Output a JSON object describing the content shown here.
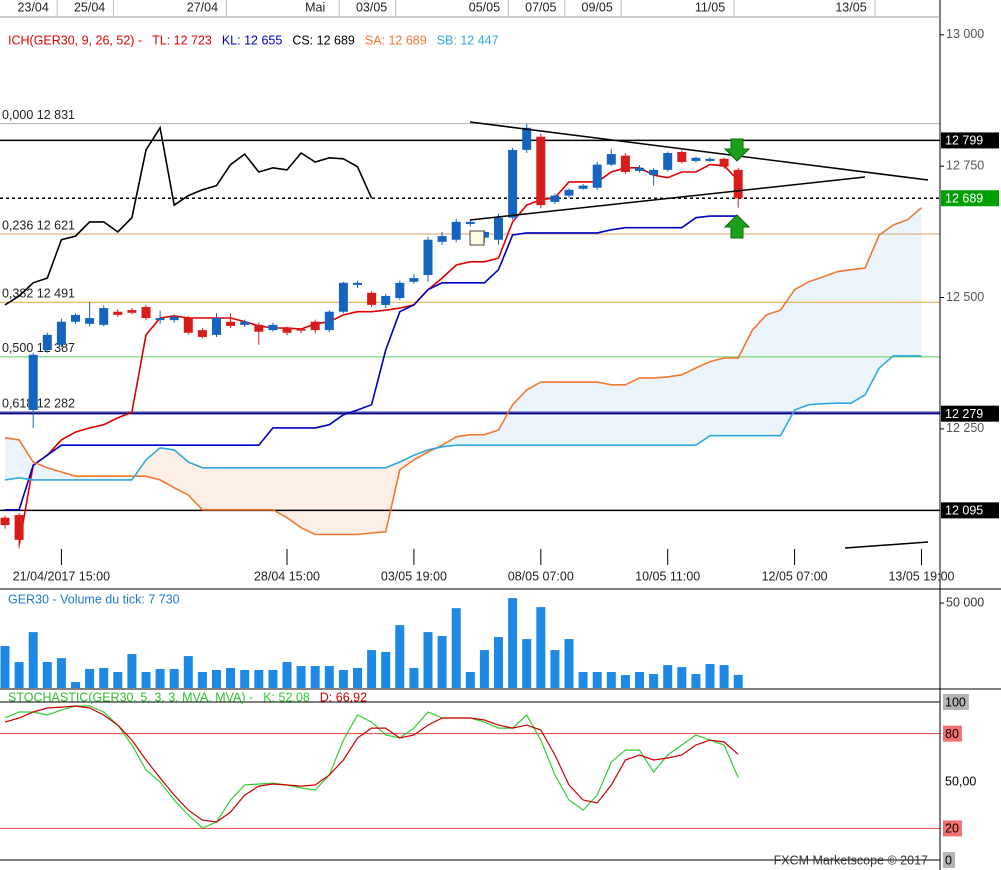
{
  "chart_data": [
    {
      "type": "candlestick",
      "legend_title": "ICH(GER30, 9, 26, 52) -",
      "legend_title_color": "#e00000",
      "categories": [
        null,
        null,
        null,
        null,
        "21/04/2017 15:00",
        null,
        null,
        null,
        null,
        null,
        null,
        null,
        null,
        null,
        null,
        null,
        null,
        null,
        null,
        null,
        "28/04 15:00",
        null,
        null,
        null,
        null,
        null,
        null,
        null,
        null,
        "03/05 19:00",
        null,
        null,
        null,
        null,
        null,
        null,
        null,
        null,
        "08/05 07:00",
        null,
        null,
        null,
        null,
        null,
        null,
        null,
        null,
        "10/05 11:00",
        null,
        null,
        null,
        null,
        null,
        null,
        null,
        null,
        "12/05 07:00",
        null,
        null,
        null,
        null,
        null,
        null,
        null,
        null,
        "13/05 19:00"
      ],
      "top_labels": [
        null,
        null,
        "23/04",
        null,
        null,
        null,
        "25/04",
        null,
        null,
        null,
        null,
        null,
        null,
        null,
        "27/04",
        null,
        null,
        null,
        null,
        null,
        null,
        null,
        "Mai",
        null,
        null,
        null,
        "03/05",
        null,
        null,
        null,
        null,
        null,
        null,
        null,
        "05/05",
        null,
        null,
        null,
        "07/05",
        null,
        null,
        null,
        "09/05",
        null,
        null,
        null,
        null,
        null,
        null,
        null,
        "11/05",
        null,
        null,
        null,
        null,
        null,
        null,
        null,
        null,
        null,
        "13/05",
        null,
        null,
        null,
        null,
        null
      ],
      "open": [
        12081,
        12086,
        12286,
        12400,
        12410,
        12454,
        12450,
        12448,
        12473,
        12476,
        12482,
        12457,
        12457,
        12461,
        12438,
        12429,
        12454,
        12448,
        12448,
        12438,
        12442,
        12440,
        12454,
        12438,
        12473,
        12524,
        12509,
        12486,
        12499,
        12530,
        12543,
        12606,
        12610,
        12640,
        12614,
        12610,
        12652,
        12781,
        12806,
        12682,
        12694,
        12707,
        12709,
        12753,
        12770,
        12741,
        12733,
        12743,
        12777,
        12760,
        12760,
        12764,
        12743,
        null,
        null,
        null,
        null,
        null,
        null,
        null,
        null,
        null,
        null,
        null,
        null,
        null
      ],
      "high": [
        12085,
        12090,
        12395,
        12433,
        12460,
        12470,
        12492,
        12485,
        12478,
        12480,
        12486,
        12475,
        12468,
        12465,
        12442,
        12470,
        12470,
        12458,
        12452,
        12452,
        12445,
        12442,
        12458,
        12476,
        12530,
        12532,
        12512,
        12507,
        12532,
        12545,
        12615,
        12625,
        12650,
        12648,
        12628,
        12660,
        12785,
        12831,
        12812,
        12698,
        12708,
        12716,
        12758,
        12783,
        12775,
        12752,
        12746,
        12778,
        12780,
        12768,
        12767,
        12766,
        12747,
        null,
        null,
        null,
        null,
        null,
        null,
        null,
        null,
        null,
        null,
        null,
        null,
        null
      ],
      "low": [
        12060,
        12023,
        12252,
        12395,
        12405,
        12450,
        12445,
        12445,
        12463,
        12468,
        12457,
        12450,
        12452,
        12430,
        12422,
        12425,
        12442,
        12444,
        12410,
        12435,
        12428,
        12432,
        12432,
        12434,
        12470,
        12518,
        12482,
        12480,
        12495,
        12526,
        12530,
        12600,
        12605,
        12635,
        12605,
        12600,
        12648,
        12775,
        12670,
        12678,
        12690,
        12705,
        12705,
        12750,
        12735,
        12738,
        12713,
        12740,
        12755,
        12757,
        12758,
        12745,
        12671,
        null,
        null,
        null,
        null,
        null,
        null,
        null,
        null,
        null,
        null,
        null,
        null,
        null
      ],
      "close": [
        12067,
        12039,
        12391,
        12429,
        12454,
        12467,
        12461,
        12480,
        12467,
        12471,
        12461,
        12461,
        12463,
        12433,
        12425,
        12461,
        12446,
        12454,
        12435,
        12448,
        12433,
        12437,
        12438,
        12473,
        12528,
        12528,
        12486,
        12503,
        12528,
        12537,
        12610,
        12617,
        12644,
        12644,
        12625,
        12652,
        12781,
        12823,
        12676,
        12694,
        12705,
        12713,
        12753,
        12773,
        12739,
        12747,
        12743,
        12775,
        12758,
        12766,
        12764,
        12749,
        12689,
        null,
        null,
        null,
        null,
        null,
        null,
        null,
        null,
        null,
        null,
        null,
        null,
        null
      ],
      "up_color": "#1565c0",
      "down_color": "#d81b1b",
      "series": [
        {
          "name": "TL: 12 723",
          "color": "#e00000",
          "values": [
            null,
            12029,
            12181,
            12200,
            12229,
            12244,
            12252,
            12258,
            12271,
            12282,
            12429,
            12461,
            12465,
            12461,
            12461,
            12461,
            12461,
            12454,
            12446,
            12442,
            12442,
            12440,
            12450,
            12454,
            12467,
            12473,
            12473,
            12476,
            12480,
            12486,
            12515,
            12537,
            12562,
            12568,
            12568,
            12575,
            12644,
            12676,
            12686,
            12690,
            12720,
            12720,
            12720,
            12739,
            12747,
            12747,
            12733,
            12728,
            12739,
            12739,
            12753,
            12751,
            12723,
            null,
            null,
            null,
            null,
            null,
            null,
            null,
            null,
            null,
            null,
            null,
            null,
            null
          ]
        },
        {
          "name": "KL: 12 655",
          "color": "#0000c0",
          "values": [
            12096,
            12096,
            12181,
            12200,
            12219,
            12219,
            12219,
            12219,
            12219,
            12219,
            12219,
            12219,
            12219,
            12219,
            12219,
            12219,
            12219,
            12219,
            12219,
            12252,
            12252,
            12252,
            12252,
            12258,
            12277,
            12286,
            12296,
            12400,
            12473,
            12486,
            12515,
            12528,
            12528,
            12528,
            12528,
            12553,
            12619,
            12623,
            12623,
            12623,
            12623,
            12623,
            12623,
            12629,
            12633,
            12633,
            12633,
            12633,
            12633,
            12652,
            12655,
            12655,
            12655,
            null,
            null,
            null,
            null,
            null,
            null,
            null,
            null,
            null,
            null,
            null,
            null,
            null
          ]
        },
        {
          "name": "CS: 12 689",
          "color": "#000000",
          "values": [
            12486,
            12503,
            12528,
            12537,
            12610,
            12617,
            12644,
            12644,
            12625,
            12652,
            12781,
            12823,
            12676,
            12694,
            12705,
            12713,
            12753,
            12773,
            12739,
            12747,
            12743,
            12775,
            12758,
            12766,
            12764,
            12749,
            12689,
            null,
            null,
            null,
            null,
            null,
            null,
            null,
            null,
            null,
            null,
            null,
            null,
            null,
            null,
            null,
            null,
            null,
            null,
            null,
            null,
            null,
            null,
            null,
            null,
            null,
            null,
            null,
            null,
            null,
            null,
            null,
            null,
            null,
            null,
            null,
            null,
            null,
            null,
            null
          ]
        },
        {
          "name": "SA: 12 689",
          "color": "#f07830",
          "values": [
            12233,
            12229,
            12187,
            12176,
            12168,
            12160,
            12160,
            12160,
            12160,
            12160,
            12160,
            12153,
            12138,
            12124,
            12096,
            12096,
            12096,
            12096,
            12096,
            12096,
            12081,
            12062,
            12049,
            12049,
            12049,
            12049,
            12052,
            12054,
            12172,
            12191,
            12206,
            12219,
            12235,
            12239,
            12239,
            12248,
            12296,
            12324,
            12339,
            12339,
            12339,
            12339,
            12339,
            12334,
            12334,
            12347,
            12347,
            12349,
            12353,
            12366,
            12378,
            12385,
            12385,
            12438,
            12467,
            12476,
            12515,
            12530,
            12539,
            12549,
            12553,
            12556,
            12619,
            12638,
            12648,
            12671
          ]
        },
        {
          "name": "SB: 12 447",
          "color": "#30a8e0",
          "values": [
            12153,
            12157,
            12153,
            12153,
            12153,
            12153,
            12153,
            12153,
            12153,
            12153,
            12191,
            12214,
            12210,
            12187,
            12176,
            12176,
            12176,
            12176,
            12176,
            12176,
            12176,
            12176,
            12176,
            12176,
            12176,
            12176,
            12176,
            12176,
            12187,
            12200,
            12210,
            12216,
            12219,
            12219,
            12219,
            12219,
            12219,
            12219,
            12219,
            12219,
            12219,
            12219,
            12219,
            12219,
            12219,
            12219,
            12219,
            12219,
            12219,
            12219,
            12237,
            12237,
            12237,
            12237,
            12237,
            12237,
            12286,
            12296,
            12298,
            12299,
            12299,
            12315,
            12366,
            12389,
            12389,
            12389
          ]
        }
      ],
      "cloud_colors": [
        "#ebf4fb",
        "#fdeee6"
      ],
      "fib_levels": [
        {
          "label": "0,000 12 831",
          "value": 12831,
          "color": "#b0b0b0"
        },
        {
          "label": "0,236 12 621",
          "value": 12621,
          "color": "#d9a066"
        },
        {
          "label": "0,382 12 491",
          "value": 12491,
          "color": "#e8a33c"
        },
        {
          "label": "0,500 12 387",
          "value": 12387,
          "color": "#5ccc5c"
        },
        {
          "label": "0,618 12 282",
          "value": 12282,
          "color": "#000080"
        }
      ],
      "price_lines": [
        {
          "value": 12799,
          "label": "12 799",
          "box": "#000000",
          "line": "#000000",
          "dotted": false
        },
        {
          "value": 12689,
          "label": "12 689",
          "box": "#00a000",
          "line": "#000000",
          "dotted": true
        },
        {
          "value": 12279,
          "label": "12 279",
          "box": "#000000",
          "line": "#000080",
          "dotted": false
        },
        {
          "value": 12095,
          "label": "12 095",
          "box": "#000000",
          "line": "#000000",
          "dotted": false
        }
      ],
      "ylim": [
        11991,
        13032
      ],
      "yticks": [
        {
          "value": 13000,
          "label": "13 000"
        },
        {
          "value": 12750,
          "label": "12 750"
        },
        {
          "value": 12500,
          "label": "12 500"
        },
        {
          "value": 12250,
          "label": "12 250"
        }
      ]
    },
    {
      "type": "bar",
      "title": "GER30 - Volume du tick: 7 730",
      "title_color": "#1e78d0",
      "color": "#1e88e5",
      "values": [
        24700,
        15300,
        32900,
        15300,
        17600,
        3500,
        11200,
        11800,
        9400,
        20000,
        9400,
        11200,
        11200,
        18800,
        9400,
        10600,
        11800,
        10600,
        10600,
        10600,
        15300,
        12900,
        12900,
        12900,
        10600,
        11800,
        22300,
        21200,
        37000,
        11800,
        32900,
        30600,
        47000,
        9400,
        22300,
        30000,
        52900,
        28800,
        47600,
        22300,
        28800,
        9400,
        9400,
        9400,
        7600,
        9400,
        8200,
        13500,
        12300,
        8200,
        14100,
        13500,
        7730
      ],
      "ylim": [
        0,
        56500
      ],
      "yticks": [
        {
          "value": 50000,
          "label": "50 000"
        }
      ]
    },
    {
      "type": "line",
      "title": "STOCHASTIC(GER30, 5, 3, 3, MVA, MVA) -",
      "title_color": "#2fbf2f",
      "series": [
        {
          "name": "K: 52,08",
          "color": "#33cc33",
          "values": [
            89.9,
            93.7,
            93.7,
            91.8,
            94.9,
            97.5,
            97.5,
            93.7,
            85.4,
            72.8,
            57.0,
            49.4,
            38.0,
            28.5,
            20.3,
            24.1,
            38.0,
            47.5,
            48.1,
            48.7,
            47.5,
            45.6,
            44.3,
            53.8,
            75.9,
            91.8,
            87.3,
            79.1,
            77.2,
            83.5,
            93.7,
            89.9,
            89.9,
            89.9,
            87.3,
            83.5,
            83.5,
            91.8,
            75.9,
            53.8,
            38.0,
            31.6,
            41.1,
            62.0,
            69.6,
            69.6,
            55.7,
            66.5,
            72.8,
            79.1,
            75.9,
            72.8,
            52.08
          ]
        },
        {
          "name": "D: 66,92",
          "color": "#cc0000",
          "values": [
            87.3,
            89.9,
            93.7,
            96.2,
            96.8,
            97.5,
            96.2,
            91.8,
            85.4,
            75.9,
            63.3,
            51.9,
            41.1,
            31.6,
            25.3,
            24.1,
            30.4,
            41.1,
            46.8,
            48.1,
            47.5,
            46.8,
            47.5,
            53.8,
            63.3,
            77.2,
            83.5,
            83.5,
            77.2,
            79.1,
            85.4,
            89.9,
            89.9,
            89.9,
            88.6,
            85.4,
            83.5,
            85.4,
            82.3,
            66.5,
            47.5,
            38.0,
            36.1,
            47.5,
            63.3,
            66.5,
            63.3,
            64.6,
            66.5,
            72.8,
            75.9,
            74.7,
            66.92
          ]
        }
      ],
      "ylim": [
        -6.3,
        107.6
      ],
      "yticks": [
        100,
        80,
        {
          "value": 50,
          "label": "50,00"
        },
        20,
        0
      ],
      "ytick_colors": [
        "#b4b4b4",
        "#f07070",
        "none",
        "#f07070",
        "#b4b4b4"
      ],
      "ref_lines": [
        {
          "value": 100,
          "color": "#000000"
        },
        {
          "value": 80,
          "color": "#e04040"
        },
        {
          "value": 20,
          "color": "#e04040"
        },
        {
          "value": 0,
          "color": "#000000"
        }
      ]
    }
  ],
  "footer": "FXCM Marketscope © 2017"
}
